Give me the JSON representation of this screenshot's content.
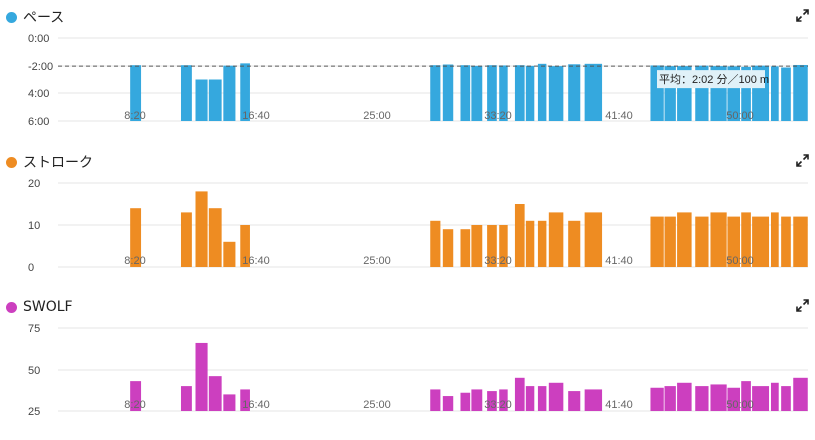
{
  "colors": {
    "pace": "#35a8de",
    "stroke": "#ee8c22",
    "swolf": "#cc3fbf"
  },
  "x_ticks": [
    "8:20",
    "16:40",
    "25:00",
    "33:20",
    "41:40",
    "50:00"
  ],
  "panels": {
    "pace": {
      "title": "ペース",
      "y_ticks": [
        "0:00",
        "-2:00",
        "4:00",
        "6:00"
      ],
      "avg_label": "平均：2:02 分／100 m"
    },
    "stroke": {
      "title": "ストローク",
      "y_ticks": [
        "20",
        "10",
        "0"
      ]
    },
    "swolf": {
      "title": "SWOLF",
      "y_ticks": [
        "75",
        "50",
        "25"
      ]
    }
  },
  "chart_data": [
    {
      "type": "bar",
      "title": "ペース",
      "x_unit": "seconds",
      "x_range": [
        0,
        3900
      ],
      "y_range_seconds": [
        0,
        360
      ],
      "y_inverted": true,
      "average": 122,
      "average_label": "平均：2:02 分／100 m",
      "x_tick_labels": [
        "8:20",
        "16:40",
        "25:00",
        "33:20",
        "41:40",
        "50:00"
      ],
      "y_tick_labels": [
        "0:00",
        "-2:00",
        "4:00",
        "6:00"
      ],
      "intervals": [
        [
          480,
          525
        ],
        [
          690,
          735
        ],
        [
          750,
          800
        ],
        [
          805,
          858
        ],
        [
          865,
          915
        ],
        [
          935,
          975
        ],
        [
          1720,
          1762
        ],
        [
          1772,
          1815
        ],
        [
          1845,
          1885
        ],
        [
          1890,
          1935
        ],
        [
          1955,
          1995
        ],
        [
          2005,
          2040
        ],
        [
          2070,
          2110
        ],
        [
          2115,
          2150
        ],
        [
          2165,
          2200
        ],
        [
          2210,
          2270
        ],
        [
          2290,
          2340
        ],
        [
          2358,
          2430
        ],
        [
          2630,
          2685
        ],
        [
          2688,
          2735
        ],
        [
          2740,
          2800
        ],
        [
          2815,
          2870
        ],
        [
          2878,
          2945
        ],
        [
          2948,
          3000
        ],
        [
          3005,
          3045
        ],
        [
          3050,
          3120
        ],
        [
          3128,
          3160
        ],
        [
          3170,
          3210
        ],
        [
          3220,
          3280
        ],
        [
          3290,
          3335
        ],
        [
          3345,
          3410
        ],
        [
          3420,
          3485
        ],
        [
          3490,
          3540
        ],
        [
          3548,
          3610
        ],
        [
          3625,
          3660
        ],
        [
          3660,
          3710
        ],
        [
          4040,
          4120
        ],
        [
          4120,
          4200
        ],
        [
          4200,
          4280
        ],
        [
          4280,
          4340
        ],
        [
          4340,
          4420
        ],
        [
          4420,
          4480
        ],
        [
          4480,
          4560
        ],
        [
          4560,
          4620
        ],
        [
          4620,
          4690
        ],
        [
          4690,
          4760
        ],
        [
          4930,
          5000
        ]
      ],
      "values": [
        118,
        118,
        180,
        180,
        120,
        110,
        118,
        115,
        118,
        121,
        118,
        119,
        118,
        121,
        112,
        122,
        114,
        112,
        119,
        122,
        122,
        120,
        122,
        123,
        125,
        120,
        123,
        128,
        117,
        123,
        117,
        126,
        120,
        127,
        120,
        125,
        150,
        150,
        150,
        150,
        150,
        150,
        150,
        150,
        150,
        150,
        115
      ]
    },
    {
      "type": "bar",
      "title": "ストローク",
      "x_unit": "seconds",
      "x_range": [
        0,
        3900
      ],
      "y_range": [
        0,
        20
      ],
      "x_tick_labels": [
        "8:20",
        "16:40",
        "25:00",
        "33:20",
        "41:40",
        "50:00"
      ],
      "y_tick_labels": [
        "20",
        "10",
        "0"
      ],
      "intervals": [
        [
          480,
          525
        ],
        [
          690,
          735
        ],
        [
          750,
          800
        ],
        [
          805,
          858
        ],
        [
          865,
          915
        ],
        [
          935,
          975
        ],
        [
          1720,
          1762
        ],
        [
          1772,
          1815
        ],
        [
          1845,
          1885
        ],
        [
          1890,
          1935
        ],
        [
          1955,
          1995
        ],
        [
          2005,
          2040
        ],
        [
          2070,
          2110
        ],
        [
          2115,
          2150
        ],
        [
          2165,
          2200
        ],
        [
          2210,
          2270
        ],
        [
          2290,
          2340
        ],
        [
          2358,
          2430
        ],
        [
          2630,
          2685
        ],
        [
          2688,
          2735
        ],
        [
          2740,
          2800
        ],
        [
          2815,
          2870
        ],
        [
          2878,
          2945
        ],
        [
          2948,
          3000
        ],
        [
          3005,
          3045
        ],
        [
          3050,
          3120
        ],
        [
          3128,
          3160
        ],
        [
          3170,
          3210
        ],
        [
          3220,
          3280
        ],
        [
          3290,
          3335
        ],
        [
          3345,
          3410
        ],
        [
          3420,
          3485
        ],
        [
          3490,
          3540
        ],
        [
          3548,
          3610
        ],
        [
          3625,
          3660
        ],
        [
          3660,
          3710
        ],
        [
          4040,
          4120
        ],
        [
          4120,
          4200
        ],
        [
          4200,
          4280
        ],
        [
          4280,
          4340
        ],
        [
          4340,
          4420
        ],
        [
          4420,
          4480
        ],
        [
          4480,
          4560
        ],
        [
          4560,
          4620
        ],
        [
          4620,
          4690
        ],
        [
          4690,
          4760
        ],
        [
          4930,
          5000
        ]
      ],
      "values": [
        14,
        13,
        18,
        14,
        6,
        10,
        11,
        9,
        9,
        10,
        10,
        10,
        15,
        11,
        11,
        13,
        11,
        13,
        12,
        12,
        13,
        12,
        13,
        12,
        13,
        12,
        13,
        12,
        12,
        13,
        12,
        13,
        13,
        12,
        15,
        14,
        15,
        14,
        15,
        15,
        16,
        15,
        12,
        16,
        13,
        12,
        13
      ]
    },
    {
      "type": "bar",
      "title": "SWOLF",
      "x_unit": "seconds",
      "x_range": [
        0,
        3900
      ],
      "y_range": [
        25,
        75
      ],
      "x_tick_labels": [
        "8:20",
        "16:40",
        "25:00",
        "33:20",
        "41:40",
        "50:00"
      ],
      "y_tick_labels": [
        "75",
        "50",
        "25"
      ],
      "intervals": [
        [
          480,
          525
        ],
        [
          690,
          735
        ],
        [
          750,
          800
        ],
        [
          805,
          858
        ],
        [
          865,
          915
        ],
        [
          935,
          975
        ],
        [
          1720,
          1762
        ],
        [
          1772,
          1815
        ],
        [
          1845,
          1885
        ],
        [
          1890,
          1935
        ],
        [
          1955,
          1995
        ],
        [
          2005,
          2040
        ],
        [
          2070,
          2110
        ],
        [
          2115,
          2150
        ],
        [
          2165,
          2200
        ],
        [
          2210,
          2270
        ],
        [
          2290,
          2340
        ],
        [
          2358,
          2430
        ],
        [
          2630,
          2685
        ],
        [
          2688,
          2735
        ],
        [
          2740,
          2800
        ],
        [
          2815,
          2870
        ],
        [
          2878,
          2945
        ],
        [
          2948,
          3000
        ],
        [
          3005,
          3045
        ],
        [
          3050,
          3120
        ],
        [
          3128,
          3160
        ],
        [
          3170,
          3210
        ],
        [
          3220,
          3280
        ],
        [
          3290,
          3335
        ],
        [
          3345,
          3410
        ],
        [
          3420,
          3485
        ],
        [
          3490,
          3540
        ],
        [
          3548,
          3610
        ],
        [
          3625,
          3660
        ],
        [
          3660,
          3710
        ],
        [
          4040,
          4120
        ],
        [
          4120,
          4200
        ],
        [
          4200,
          4280
        ],
        [
          4280,
          4340
        ],
        [
          4340,
          4420
        ],
        [
          4420,
          4480
        ],
        [
          4480,
          4560
        ],
        [
          4560,
          4620
        ],
        [
          4620,
          4690
        ],
        [
          4690,
          4760
        ],
        [
          4930,
          5000
        ]
      ],
      "values": [
        43,
        40,
        66,
        46,
        35,
        38,
        38,
        34,
        36,
        38,
        37,
        38,
        45,
        40,
        40,
        42,
        37,
        38,
        39,
        40,
        42,
        40,
        41,
        39,
        43,
        40,
        42,
        40,
        45,
        46,
        36,
        44,
        37,
        41,
        46,
        38,
        45,
        47,
        54,
        48,
        62,
        48,
        55,
        47,
        52,
        41,
        59
      ]
    }
  ]
}
